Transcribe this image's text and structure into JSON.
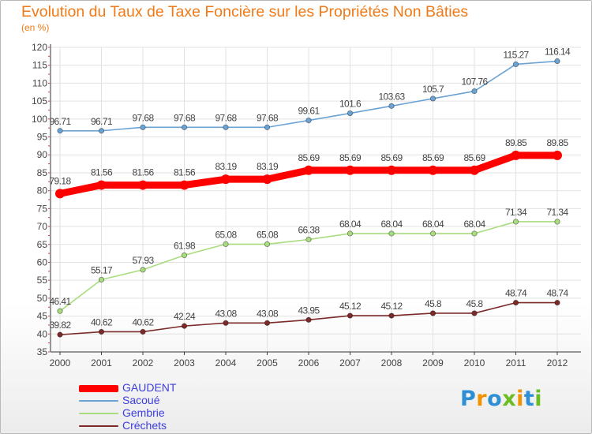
{
  "title": "Evolution du Taux de Taxe Foncière sur les Propriétés Non Bâties",
  "subtitle": "(en %)",
  "colors": {
    "title": "#ef7a17",
    "legend_text": "#3d3ddb",
    "grid": "#e2e2e2",
    "axis_text": "#444444",
    "label_text": "#444444"
  },
  "logo": {
    "text": "Proxiti",
    "colors": [
      "#2f8fd4",
      "#f39200",
      "#2f8fd4",
      "#6cbd22",
      "#f39200",
      "#2f8fd4",
      "#6cbd22"
    ]
  },
  "chart_data": {
    "type": "line",
    "title": "Evolution du Taux de Taxe Foncière sur les Propriétés Non Bâties",
    "ylabel": "(en %)",
    "xlabel": "",
    "ylim": [
      35,
      120
    ],
    "yticks": [
      35,
      40,
      45,
      50,
      55,
      60,
      65,
      70,
      75,
      80,
      85,
      90,
      95,
      100,
      105,
      110,
      115,
      120
    ],
    "grid": true,
    "legend_position": "bottom-left",
    "categories": [
      "2000",
      "2001",
      "2002",
      "2003",
      "2004",
      "2005",
      "2006",
      "2007",
      "2008",
      "2009",
      "2010",
      "2011",
      "2012"
    ],
    "series": [
      {
        "name": "GAUDENT",
        "color": "#ff0000",
        "emphasis": true,
        "values": [
          79.18,
          81.56,
          81.56,
          81.56,
          83.19,
          83.19,
          85.69,
          85.69,
          85.69,
          85.69,
          85.69,
          89.85,
          89.85
        ],
        "labels": [
          "79.18",
          "81.56",
          "81.56",
          "81.56",
          "83.19",
          "83.19",
          "85.69",
          "85.69",
          "85.69",
          "85.69",
          "85.69",
          "89.85",
          "89.85"
        ]
      },
      {
        "name": "Sacoué",
        "color": "#6ba3d4",
        "values": [
          96.71,
          96.71,
          97.68,
          97.68,
          97.68,
          97.68,
          99.61,
          101.6,
          103.63,
          105.7,
          107.76,
          115.27,
          116.14
        ],
        "labels": [
          "96.71",
          "96.71",
          "97.68",
          "97.68",
          "97.68",
          "97.68",
          "99.61",
          "101.6",
          "103.63",
          "105.7",
          "107.76",
          "115.27",
          "116.14"
        ]
      },
      {
        "name": "Gembrie",
        "color": "#a9dc7e",
        "values": [
          46.41,
          55.17,
          57.93,
          61.98,
          65.08,
          65.08,
          66.38,
          68.04,
          68.04,
          68.04,
          68.04,
          71.34,
          71.34
        ],
        "labels": [
          "46.41",
          "55.17",
          "57.93",
          "61.98",
          "65.08",
          "65.08",
          "66.38",
          "68.04",
          "68.04",
          "68.04",
          "68.04",
          "71.34",
          "71.34"
        ]
      },
      {
        "name": "Créchets",
        "color": "#7c2a2a",
        "values": [
          39.82,
          40.62,
          40.62,
          42.24,
          43.08,
          43.08,
          43.95,
          45.12,
          45.12,
          45.8,
          45.8,
          48.74,
          48.74
        ],
        "labels": [
          "39.82",
          "40.62",
          "40.62",
          "42.24",
          "43.08",
          "43.08",
          "43.95",
          "45.12",
          "45.12",
          "45.8",
          "45.8",
          "48.74",
          "48.74"
        ]
      }
    ]
  }
}
